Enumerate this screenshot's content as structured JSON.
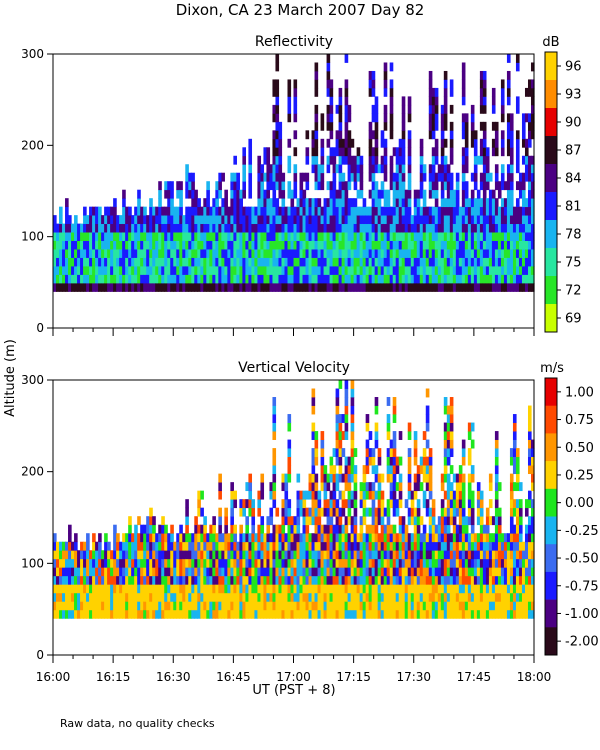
{
  "title": "Dixon, CA 23 March 2007  Day  82",
  "ylabel": "Altitude (m)",
  "xlabel": "UT  (PST + 8)",
  "footnote": "Raw data, no quality checks",
  "chart_data": [
    {
      "type": "heatmap",
      "title": "Reflectivity",
      "x_ticks": [
        "16:00",
        "16:15",
        "16:30",
        "16:45",
        "17:00",
        "17:15",
        "17:30",
        "17:45",
        "18:00"
      ],
      "y_ticks": [
        0,
        100,
        200,
        300
      ],
      "xlim": [
        "16:00",
        "18:00"
      ],
      "ylim": [
        0,
        300
      ],
      "colorbar": {
        "unit": "dB",
        "labels": [
          "96",
          "93",
          "90",
          "87",
          "84",
          "81",
          "78",
          "75",
          "72",
          "69"
        ],
        "colors": [
          "#ffd200",
          "#ff8c00",
          "#e60000",
          "#2a0a1a",
          "#4b0082",
          "#1a1aff",
          "#19b4f0",
          "#28e6a0",
          "#28e628",
          "#c8ff00"
        ]
      },
      "data_summary": {
        "data_floor_altitude_m": 40,
        "dense_echo_top_m": [
          120,
          300
        ],
        "dominant_values_dB": [
          78,
          84
        ]
      }
    },
    {
      "type": "heatmap",
      "title": "Vertical Velocity",
      "x_ticks": [
        "16:00",
        "16:15",
        "16:30",
        "16:45",
        "17:00",
        "17:15",
        "17:30",
        "17:45",
        "18:00"
      ],
      "y_ticks": [
        0,
        100,
        200,
        300
      ],
      "xlim": [
        "16:00",
        "18:00"
      ],
      "ylim": [
        0,
        300
      ],
      "colorbar": {
        "unit": "m/s",
        "labels": [
          "1.00",
          "0.75",
          "0.50",
          "0.25",
          "0.00",
          "-0.25",
          "-0.50",
          "-0.75",
          "-1.00",
          "-2.00"
        ],
        "colors": [
          "#e60000",
          "#ff4a00",
          "#ff9600",
          "#ffd200",
          "#1ee61e",
          "#19b4f0",
          "#3b6cf0",
          "#1a1aff",
          "#4b0082",
          "#2a0a1a"
        ]
      },
      "data_summary": {
        "data_floor_altitude_m": 40,
        "dense_echo_top_m": [
          120,
          300
        ],
        "dominant_values_m_s": [
          -0.75,
          0.5
        ]
      }
    }
  ]
}
